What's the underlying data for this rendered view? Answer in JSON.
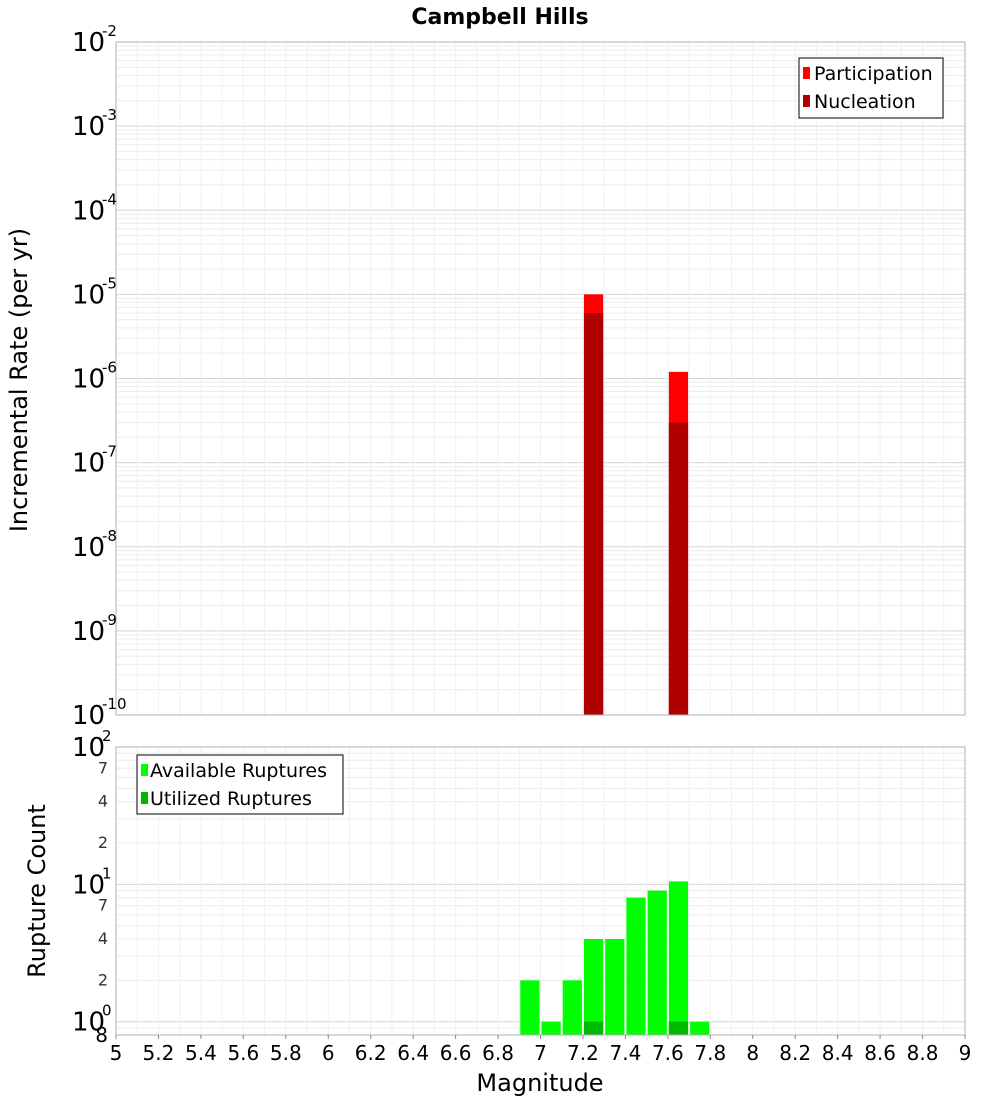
{
  "chart_data": [
    {
      "type": "bar",
      "title": "Campbell Hills",
      "xlabel": "",
      "ylabel": "Incremental Rate (per yr)",
      "yscale": "log",
      "ylim": [
        1e-10,
        0.01
      ],
      "xlim": [
        5,
        9
      ],
      "legend_position": "top-right",
      "y_ticks": [
        {
          "base": "10",
          "exp": "-10",
          "value": 1e-10
        },
        {
          "base": "10",
          "exp": "-9",
          "value": 1e-09
        },
        {
          "base": "10",
          "exp": "-8",
          "value": 1e-08
        },
        {
          "base": "10",
          "exp": "-7",
          "value": 1e-07
        },
        {
          "base": "10",
          "exp": "-6",
          "value": 1e-06
        },
        {
          "base": "10",
          "exp": "-5",
          "value": 1e-05
        },
        {
          "base": "10",
          "exp": "-4",
          "value": 0.0001
        },
        {
          "base": "10",
          "exp": "-3",
          "value": 0.001
        },
        {
          "base": "10",
          "exp": "-2",
          "value": 0.01
        }
      ],
      "series": [
        {
          "name": "Participation",
          "color": "#ff0000",
          "x": [
            7.25,
            7.65
          ],
          "values": [
            1e-05,
            1.2e-06
          ]
        },
        {
          "name": "Nucleation",
          "color": "#b00000",
          "x": [
            7.25,
            7.65
          ],
          "values": [
            6e-06,
            3e-07
          ]
        }
      ]
    },
    {
      "type": "bar",
      "title": "",
      "xlabel": "Magnitude",
      "ylabel": "Rupture Count",
      "yscale": "log",
      "ylim": [
        0.8,
        100
      ],
      "xlim": [
        5,
        9
      ],
      "legend_position": "top-left",
      "x_ticks": [
        "5",
        "5.2",
        "5.4",
        "5.6",
        "5.8",
        "6",
        "6.2",
        "6.4",
        "6.6",
        "6.8",
        "7",
        "7.2",
        "7.4",
        "7.6",
        "7.8",
        "8",
        "8.2",
        "8.4",
        "8.6",
        "8.8",
        "9"
      ],
      "y_major_ticks": [
        {
          "base": "10",
          "exp": "0",
          "value": 1
        },
        {
          "base": "10",
          "exp": "1",
          "value": 10
        },
        {
          "base": "10",
          "exp": "2",
          "value": 100
        }
      ],
      "y_minor_ticks": [
        {
          "label": "8",
          "value": 0.8
        },
        {
          "label": "2",
          "value": 2
        },
        {
          "label": "4",
          "value": 4
        },
        {
          "label": "7",
          "value": 7
        },
        {
          "label": "2",
          "value": 20
        },
        {
          "label": "4",
          "value": 40
        },
        {
          "label": "7",
          "value": 70
        }
      ],
      "series": [
        {
          "name": "Available Ruptures",
          "color": "#00ff00",
          "x": [
            6.95,
            7.05,
            7.15,
            7.25,
            7.35,
            7.45,
            7.55,
            7.65,
            7.75
          ],
          "values": [
            2,
            1,
            2,
            4,
            4,
            8,
            9,
            10.5,
            1
          ]
        },
        {
          "name": "Utilized Ruptures",
          "color": "#00b800",
          "x": [
            7.25,
            7.65
          ],
          "values": [
            1,
            1
          ]
        }
      ]
    }
  ]
}
